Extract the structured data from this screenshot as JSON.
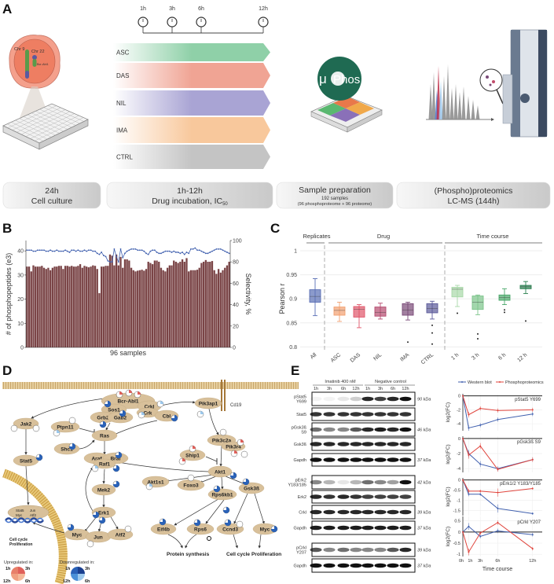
{
  "panels": {
    "a": "A",
    "b": "B",
    "c": "C",
    "d": "D",
    "e": "E"
  },
  "panel_a": {
    "timepoints": [
      "1h",
      "3h",
      "6h",
      "12h"
    ],
    "treatments": [
      {
        "label": "ASC",
        "color": "#8fd0a8"
      },
      {
        "label": "DAS",
        "color": "#f0a494"
      },
      {
        "label": "NIL",
        "color": "#a9a4d4"
      },
      {
        "label": "IMA",
        "color": "#f8c89c"
      },
      {
        "label": "CTRL",
        "color": "#c4c4c4"
      }
    ],
    "cell_labels": {
      "chr9": "Chr 9",
      "chr22": "Chr 22",
      "fusion": "Bcr-Abl1"
    },
    "logo": {
      "mu": "μ",
      "text": "Phos"
    },
    "stages": [
      {
        "line1": "24h",
        "line2": "Cell culture"
      },
      {
        "line1": "1h-12h",
        "line2": "Drug incubation, IC",
        "sub": "50"
      },
      {
        "line1": "Sample preparation",
        "line2": "192 samples",
        "line3": "(96 phosphoproteome + 96 proteome)"
      },
      {
        "line1": "(Phospho)proteomics",
        "line2": "LC-MS (144h)"
      }
    ]
  },
  "chart_data": [
    {
      "panel": "B",
      "type": "bar",
      "xlabel": "96 samples",
      "ylabel": "# of phosphopeptides (e3)",
      "y2label": "Selectivity, %",
      "ylim": [
        0,
        44
      ],
      "y2lim": [
        0,
        100
      ],
      "yticks": [
        "0",
        "10",
        "20",
        "30",
        "40"
      ],
      "y2ticks": [
        "0",
        "20",
        "40",
        "60",
        "80",
        "100"
      ],
      "bar_color": "#7a4446",
      "line_color": "#3f5fae",
      "values": [
        33.5,
        33.5,
        31.5,
        34,
        33.5,
        33.5,
        33.5,
        33.8,
        33,
        32.5,
        33,
        32,
        33,
        33.5,
        33.5,
        33.8,
        33.8,
        32.5,
        33.8,
        33.8,
        33.5,
        33.8,
        33.5,
        33.5,
        33.8,
        34.5,
        33,
        33.8,
        33.5,
        33.2,
        33.5,
        34,
        33.8,
        32.5,
        22.5,
        33.5,
        33.5,
        33.8,
        33.8,
        38.5,
        38,
        34,
        38.5,
        34,
        37.5,
        33,
        36.5,
        36.5,
        36,
        33,
        32,
        31.5,
        31.8,
        32,
        32.2,
        31.8,
        32.5,
        35.5,
        35,
        34.5,
        36,
        36,
        35.5,
        33,
        32,
        31.5,
        33,
        34,
        34,
        36,
        35.5,
        35,
        35.5,
        36.5,
        35.5,
        37,
        31.5,
        32,
        32,
        32,
        32.2,
        33,
        35,
        35.5,
        36.2,
        35.5,
        35.5,
        35.8,
        32,
        30.5,
        32.5,
        31,
        32,
        33,
        34,
        35.5
      ],
      "selectivity": [
        91,
        91,
        91,
        90,
        90,
        91,
        91,
        91,
        91,
        90,
        90,
        91,
        90,
        90,
        91,
        90,
        90,
        90,
        91,
        90,
        89,
        91,
        91,
        90,
        91,
        90,
        90,
        91,
        90,
        91,
        91,
        90,
        90,
        88,
        87,
        89,
        86,
        85,
        81,
        80,
        80,
        92,
        85,
        80,
        92,
        84,
        88,
        90,
        91,
        92,
        92,
        92,
        91,
        91,
        91,
        90,
        88,
        87,
        90,
        91,
        91,
        89,
        88,
        88,
        89,
        90,
        90,
        90,
        89,
        90,
        89,
        89,
        88,
        89,
        87,
        89,
        88,
        92,
        92,
        93,
        91,
        91,
        90,
        89,
        88,
        88,
        89,
        90,
        91,
        92,
        92,
        92,
        91,
        90,
        89,
        88
      ]
    },
    {
      "panel": "C",
      "type": "box",
      "ylabel": "Pearson r",
      "ylim": [
        0.8,
        1.0
      ],
      "yticks": [
        "0.8",
        "0.85",
        "0.9",
        "0.95",
        "1"
      ],
      "groups": [
        {
          "label": "Replicates"
        },
        {
          "label": "Drug"
        },
        {
          "label": "Time course"
        }
      ],
      "boxes": [
        {
          "label": "All",
          "color": "#5a6fb5",
          "stats": [
            0.865,
            0.893,
            0.905,
            0.919,
            0.942
          ],
          "outliers": []
        },
        {
          "label": "ASC",
          "color": "#f2a070",
          "stats": [
            0.853,
            0.866,
            0.876,
            0.883,
            0.893
          ],
          "outliers": []
        },
        {
          "label": "DAS",
          "color": "#e0566a",
          "stats": [
            0.84,
            0.862,
            0.878,
            0.884,
            0.888
          ],
          "outliers": []
        },
        {
          "label": "NIL",
          "color": "#b54a6e",
          "stats": [
            0.858,
            0.864,
            0.872,
            0.883,
            0.891
          ],
          "outliers": []
        },
        {
          "label": "IMA",
          "color": "#7a4a78",
          "stats": [
            0.856,
            0.866,
            0.877,
            0.89,
            0.893
          ],
          "outliers": [
            0.81
          ]
        },
        {
          "label": "CTRL",
          "color": "#5b5a9a",
          "stats": [
            0.858,
            0.871,
            0.88,
            0.89,
            0.895
          ],
          "outliers": [
            0.845,
            0.829,
            0.806
          ]
        },
        {
          "label": "1 h",
          "color": "#a8d8a8",
          "stats": [
            0.884,
            0.904,
            0.92,
            0.924,
            0.928
          ],
          "outliers": [
            0.87
          ]
        },
        {
          "label": "3 h",
          "color": "#7cc48a",
          "stats": [
            0.867,
            0.878,
            0.893,
            0.906,
            0.908
          ],
          "outliers": [
            0.827,
            0.817
          ]
        },
        {
          "label": "6 h",
          "color": "#4aa86a",
          "stats": [
            0.888,
            0.897,
            0.903,
            0.908,
            0.921
          ],
          "outliers": [
            0.877,
            0.872
          ]
        },
        {
          "label": "12 h",
          "color": "#2a8050",
          "stats": [
            0.911,
            0.921,
            0.925,
            0.928,
            0.936
          ],
          "outliers": [
            0.854
          ]
        }
      ]
    },
    {
      "panel": "E",
      "type": "line",
      "xlabel": "Time course",
      "ylabel": "log2(FC)",
      "x": [
        0,
        1,
        3,
        6,
        12
      ],
      "xticks": [
        "0h",
        "1h",
        "3h",
        "6h",
        "12h"
      ],
      "legend": [
        {
          "name": "Western blot",
          "color": "#3f5fae"
        },
        {
          "name": "Phosphoproteomics",
          "color": "#e0443c"
        }
      ],
      "subplots": [
        {
          "title": "pStat5 Y699",
          "ylim": [
            -5,
            0.3
          ],
          "yticks": [
            0,
            -2,
            -4
          ],
          "western": [
            0,
            -4.6,
            -4.2,
            -3.4,
            -2.6
          ],
          "phospho": [
            0,
            -2.7,
            -1.8,
            -2.1,
            -2.0
          ],
          "err": [
            0,
            0.4,
            0.3,
            0.3,
            0.3
          ]
        },
        {
          "title": "pGsk3ß S9",
          "ylim": [
            -4.5,
            0.3
          ],
          "yticks": [
            0,
            -2,
            -4
          ],
          "western": [
            0,
            -2.0,
            -3.4,
            -4.0,
            -2.8
          ],
          "phospho": [
            0,
            -2.2,
            -1.0,
            -4.1,
            -2.8
          ],
          "err": [
            0,
            0.5,
            0.4,
            0.3,
            0.3
          ]
        },
        {
          "title": "pErk1/2 Y183/Y185",
          "ylim": [
            -1.75,
            0.1
          ],
          "yticks": [
            0,
            -0.5,
            -1,
            -1.5
          ],
          "western": [
            0,
            -0.7,
            -0.7,
            -1.4,
            -1.65
          ],
          "phospho": [
            0,
            -0.55,
            -0.55,
            -0.62,
            -0.42
          ],
          "err": [
            0,
            0.1,
            0.08,
            0.2,
            0.06
          ]
        },
        {
          "title": "pCrkl Y207",
          "ylim": [
            -1.1,
            0.7
          ],
          "yticks": [
            0.5,
            0,
            -0.5,
            -1
          ],
          "western": [
            0,
            0.25,
            -0.2,
            0.05,
            -0.12
          ],
          "phospho": [
            0,
            -0.9,
            -0.05,
            0.42,
            -0.75
          ],
          "err": [
            0,
            0.15,
            0.08,
            0.1,
            0.08
          ]
        }
      ]
    }
  ],
  "pathway": {
    "nodes": [
      "Bcr-Abl1",
      "Sos1",
      "Grb2",
      "Gab2",
      "Crkl",
      "Crk",
      "Cbl",
      "Jak2",
      "Ptpn11",
      "Ras",
      "Shc1",
      "Stat5",
      "Araf",
      "Braf",
      "Raf1",
      "Mek2",
      "Erk1",
      "Myc",
      "Jun",
      "Atf2",
      "Pik3ap1",
      "Pik3c2a",
      "Pik3r4",
      "Ship1",
      "Akt1",
      "Akt1s1",
      "Foxo3",
      "Rps6kb1",
      "Gsk3ß",
      "Eif4b",
      "Rps6",
      "Ccnd3",
      "Myc"
    ],
    "receptor": "Cd19",
    "nuclear_complex": [
      "Stat5",
      "Jun",
      "Myc",
      "Atf2"
    ],
    "outcomes": {
      "nucleus": [
        "Cell cycle",
        "Proliferation"
      ],
      "protein": "Protein synthesis",
      "cycle": "Cell cycle",
      "prolif": "Proliferation"
    },
    "legend": {
      "up": {
        "title": "Upregulated in:",
        "colors": [
          "#e0605a",
          "#e8806a",
          "#f0a080",
          "#f4b898"
        ]
      },
      "down": {
        "title": "Downregulated in:",
        "colors": [
          "#1a3f8f",
          "#2a62b8",
          "#4a90d8",
          "#9cc8ec"
        ]
      },
      "times": [
        "1h",
        "3h",
        "12h",
        "6h"
      ]
    }
  },
  "western": {
    "conditions": [
      "Imatinib 400 nM",
      "Negative control"
    ],
    "lanes": [
      "1h",
      "3h",
      "6h",
      "12h",
      "1h",
      "3h",
      "6h",
      "12h"
    ],
    "rows": [
      {
        "label": "pStat5",
        "label2": "Y699",
        "kda": "90 kDa",
        "bands": [
          0.05,
          0.05,
          0.1,
          0.2,
          0.9,
          0.8,
          0.9,
          1
        ]
      },
      {
        "label": "Stat5",
        "label2": "",
        "kda": "",
        "bands": [
          0.85,
          0.85,
          0.85,
          0.85,
          0.85,
          0.85,
          0.85,
          0.85
        ]
      },
      {
        "label": "pGsk3ß",
        "label2": "S9",
        "kda": "46 kDa",
        "bands": [
          0.6,
          0.5,
          0.5,
          0.7,
          0.9,
          0.95,
          0.9,
          1
        ]
      },
      {
        "label": "Gsk3ß",
        "label2": "",
        "kda": "",
        "bands": [
          0.9,
          0.9,
          0.9,
          0.9,
          0.9,
          0.9,
          0.9,
          0.9
        ]
      },
      {
        "label": "Gapdh",
        "label2": "",
        "kda": "37 kDa",
        "bands": [
          1,
          1,
          1,
          1,
          1,
          1,
          1,
          1
        ]
      },
      {
        "label": "pErk2",
        "label2": "Y183/185",
        "kda": "42 kDa",
        "bands": [
          0.5,
          0.3,
          0.1,
          0.3,
          0.6,
          0.5,
          0.4,
          1
        ]
      },
      {
        "label": "Erk2",
        "label2": "",
        "kda": "",
        "bands": [
          0.9,
          0.85,
          0.9,
          0.85,
          0.8,
          0.8,
          0.8,
          0.8
        ]
      },
      {
        "label": "Crkl",
        "label2": "",
        "kda": "39 kDa",
        "bands": [
          0.9,
          0.9,
          0.9,
          0.9,
          0.9,
          0.9,
          0.9,
          0.9
        ]
      },
      {
        "label": "Gapdh",
        "label2": "",
        "kda": "37 kDa",
        "bands": [
          0.95,
          0.95,
          0.95,
          0.95,
          0.95,
          0.95,
          0.95,
          0.95
        ]
      },
      {
        "label": "pCrkl",
        "label2": "Y207",
        "kda": "39 kDa",
        "bands": [
          0.7,
          0.5,
          0.6,
          0.5,
          0.5,
          0.5,
          0.7,
          0.9
        ]
      },
      {
        "label": "Gapdh",
        "label2": "",
        "kda": "37 kDa",
        "bands": [
          1,
          1,
          1,
          1,
          1,
          1,
          1,
          1
        ]
      }
    ]
  }
}
